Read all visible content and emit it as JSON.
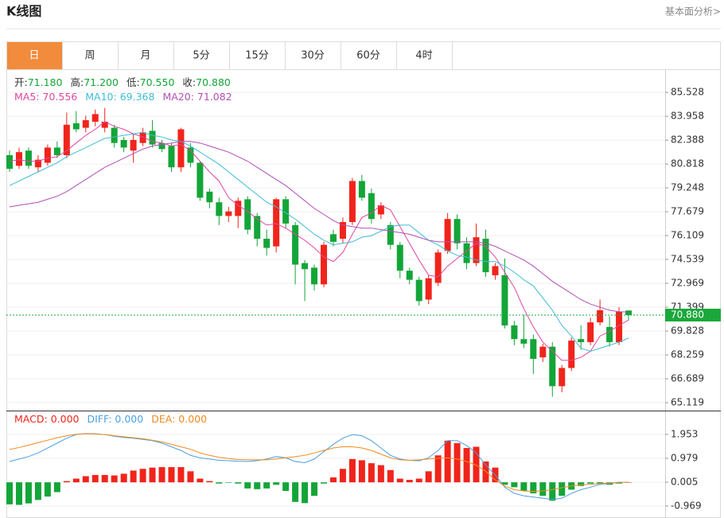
{
  "header": {
    "title": "K线图",
    "link": "基本面分析>"
  },
  "tabs": [
    "日",
    "周",
    "月",
    "5分",
    "15分",
    "30分",
    "60分",
    "4时"
  ],
  "active_tab": "日",
  "chart_data": [
    {
      "type": "candlestick",
      "info": [
        [
          {
            "label": "开:",
            "value": "71.180",
            "color": "#13a538"
          },
          {
            "label": "高:",
            "value": "71.200",
            "color": "#13a538"
          },
          {
            "label": "低:",
            "value": "70.550",
            "color": "#13a538"
          },
          {
            "label": "收:",
            "value": "70.880",
            "color": "#13a538"
          }
        ],
        [
          {
            "label": "MA5:",
            "value": "70.556",
            "color": "#e0479e"
          },
          {
            "label": "MA10:",
            "value": "69.368",
            "color": "#3fbcd6"
          },
          {
            "label": "MA20:",
            "value": "71.082",
            "color": "#b04fb8"
          }
        ]
      ],
      "up_color": "#f0241b",
      "down_color": "#13a538",
      "open": [
        81.4,
        80.7,
        81.7,
        80.6,
        80.9,
        81.9,
        81.4,
        83.5,
        83.2,
        83.6,
        83.2,
        83.2,
        82.4,
        81.7,
        82.2,
        83.0,
        82.2,
        82.0,
        80.6,
        81.9,
        80.9,
        79.0,
        78.3,
        77.4,
        77.4,
        78.5,
        77.4,
        75.9,
        75.4,
        78.5,
        76.8,
        74.3,
        74.0,
        72.9,
        76.2,
        75.9,
        77.0,
        79.7,
        78.9,
        77.5,
        76.8,
        75.5,
        73.8,
        73.2,
        71.9,
        73.0,
        75.1,
        77.2,
        75.6,
        74.3,
        75.9,
        73.5,
        73.5,
        70.2,
        69.3,
        69.3,
        68.1,
        68.8,
        66.2,
        67.4,
        69.3,
        69.1,
        70.4,
        70.1,
        69.1,
        71.18
      ],
      "high": [
        81.7,
        81.9,
        81.9,
        81.4,
        82.1,
        82.3,
        84.2,
        84.3,
        84.0,
        84.4,
        84.5,
        83.4,
        82.6,
        82.8,
        83.2,
        83.7,
        82.4,
        82.2,
        83.2,
        82.2,
        81.0,
        79.2,
        78.6,
        78.0,
        78.6,
        78.7,
        77.6,
        76.5,
        78.6,
        78.7,
        77.0,
        74.5,
        74.2,
        75.7,
        76.5,
        77.3,
        79.9,
        80.1,
        79.2,
        78.3,
        77.0,
        75.7,
        74.0,
        73.4,
        73.5,
        75.2,
        77.6,
        77.5,
        76.0,
        76.9,
        76.5,
        74.3,
        74.6,
        70.5,
        70.9,
        69.6,
        69.0,
        69.1,
        67.6,
        69.4,
        70.2,
        70.7,
        71.9,
        70.8,
        71.4,
        71.2
      ],
      "low": [
        80.3,
        80.5,
        80.5,
        80.3,
        80.7,
        81.2,
        81.2,
        82.9,
        82.9,
        83.3,
        82.9,
        81.9,
        81.6,
        80.9,
        82.0,
        81.9,
        81.6,
        80.3,
        80.3,
        80.6,
        78.4,
        77.9,
        76.8,
        77.0,
        76.6,
        76.2,
        75.4,
        74.8,
        75.0,
        76.6,
        72.9,
        71.8,
        72.5,
        72.7,
        75.4,
        75.6,
        76.8,
        78.4,
        76.9,
        77.2,
        75.2,
        73.3,
        72.9,
        71.5,
        71.6,
        72.8,
        74.9,
        75.2,
        73.9,
        74.1,
        73.4,
        73.2,
        70.0,
        68.9,
        68.7,
        67.0,
        67.8,
        65.5,
        65.8,
        67.2,
        68.6,
        68.9,
        70.2,
        68.8,
        68.9,
        70.55
      ],
      "close": [
        80.5,
        81.6,
        80.7,
        81.1,
        81.9,
        81.4,
        83.4,
        83.1,
        83.7,
        84.1,
        83.6,
        82.2,
        81.9,
        82.4,
        82.9,
        82.1,
        81.8,
        80.6,
        83.1,
        80.9,
        78.6,
        78.3,
        77.4,
        77.7,
        78.4,
        76.5,
        75.9,
        75.3,
        78.5,
        76.9,
        74.2,
        73.9,
        72.9,
        75.5,
        75.7,
        77.0,
        79.7,
        78.6,
        77.2,
        78.1,
        75.5,
        73.8,
        73.2,
        71.8,
        73.3,
        75.0,
        77.2,
        75.6,
        74.3,
        76.0,
        73.7,
        74.1,
        70.2,
        69.3,
        69.0,
        68.0,
        68.8,
        66.2,
        67.4,
        69.2,
        69.1,
        70.4,
        71.2,
        69.1,
        71.1,
        70.88
      ],
      "lines": [
        {
          "name": "MA5",
          "color": "#e0479e",
          "values": [
            81.0,
            81.1,
            81.0,
            81.0,
            81.2,
            81.3,
            81.7,
            82.2,
            82.7,
            83.1,
            83.6,
            83.3,
            83.1,
            82.8,
            82.6,
            82.3,
            82.2,
            82.0,
            82.1,
            81.7,
            81.0,
            80.3,
            79.7,
            78.6,
            78.1,
            77.7,
            77.2,
            76.8,
            76.9,
            76.6,
            76.2,
            75.8,
            75.3,
            74.7,
            74.4,
            75.0,
            76.2,
            77.3,
            77.6,
            78.1,
            77.8,
            76.7,
            75.6,
            74.5,
            73.5,
            73.4,
            74.1,
            74.6,
            75.1,
            75.6,
            75.4,
            74.7,
            73.7,
            72.7,
            71.3,
            70.1,
            69.1,
            68.5,
            67.9,
            67.9,
            68.1,
            68.5,
            69.5,
            69.8,
            70.2,
            70.556
          ]
        },
        {
          "name": "MA10",
          "color": "#3fbcd6",
          "values": [
            79.4,
            79.7,
            80.0,
            80.3,
            80.6,
            80.9,
            81.3,
            81.6,
            81.9,
            82.2,
            82.5,
            82.6,
            82.7,
            82.8,
            82.9,
            82.7,
            82.6,
            82.4,
            82.3,
            82.0,
            81.6,
            81.2,
            80.8,
            80.3,
            79.8,
            79.3,
            78.8,
            78.3,
            78.0,
            77.6,
            77.2,
            76.7,
            76.2,
            75.8,
            75.5,
            75.6,
            75.7,
            76.0,
            76.1,
            76.4,
            76.7,
            76.8,
            76.8,
            76.3,
            75.8,
            75.5,
            75.1,
            74.8,
            74.7,
            74.5,
            74.4,
            74.4,
            74.1,
            73.7,
            73.2,
            72.8,
            72.0,
            71.2,
            70.2,
            69.5,
            68.7,
            68.5,
            68.7,
            68.9,
            69.1,
            69.368
          ]
        },
        {
          "name": "MA20",
          "color": "#b04fb8",
          "values": [
            78.0,
            78.1,
            78.2,
            78.3,
            78.5,
            78.7,
            79.0,
            79.4,
            79.8,
            80.2,
            80.6,
            80.9,
            81.2,
            81.5,
            81.8,
            82.0,
            82.1,
            82.2,
            82.3,
            82.3,
            82.2,
            82.0,
            81.8,
            81.6,
            81.3,
            81.0,
            80.6,
            80.2,
            79.8,
            79.4,
            78.9,
            78.4,
            77.9,
            77.5,
            77.1,
            76.8,
            76.7,
            76.6,
            76.6,
            76.5,
            76.4,
            76.3,
            76.2,
            76.0,
            75.8,
            75.7,
            75.7,
            75.7,
            75.7,
            75.7,
            75.6,
            75.4,
            75.1,
            74.8,
            74.5,
            74.1,
            73.6,
            73.1,
            72.7,
            72.3,
            71.9,
            71.6,
            71.4,
            71.2,
            71.1,
            71.082
          ]
        }
      ],
      "current_price": {
        "value": 70.88,
        "label": "70.880",
        "color": "#1aa83c"
      },
      "ylim": [
        64.65,
        87.0
      ],
      "yticks": [
        85.528,
        83.958,
        82.388,
        80.818,
        79.248,
        77.679,
        76.109,
        74.539,
        72.969,
        71.399,
        69.828,
        68.259,
        66.689,
        65.119
      ],
      "grid": true
    },
    {
      "type": "macd",
      "info": [
        [
          {
            "label": "MACD:",
            "value": "0.000",
            "color": "#e8261c"
          },
          {
            "label": "DIFF:",
            "value": "0.000",
            "color": "#4a9fe3"
          },
          {
            "label": "DEA:",
            "value": "0.000",
            "color": "#f08a1e"
          }
        ]
      ],
      "up_color": "#f0241b",
      "down_color": "#13a538",
      "histogram": [
        -0.9,
        -0.92,
        -0.86,
        -0.72,
        -0.58,
        -0.4,
        0.05,
        0.15,
        0.25,
        0.3,
        0.3,
        0.28,
        0.35,
        0.48,
        0.55,
        0.6,
        0.62,
        0.62,
        0.62,
        0.45,
        0.15,
        0.05,
        -0.05,
        -0.02,
        -0.05,
        -0.25,
        -0.28,
        -0.25,
        -0.1,
        -0.35,
        -0.8,
        -0.85,
        -0.55,
        -0.05,
        0.2,
        0.55,
        0.95,
        0.9,
        0.78,
        0.7,
        0.5,
        0.15,
        0.1,
        0.15,
        0.45,
        1.1,
        1.7,
        1.6,
        1.4,
        1.45,
        0.85,
        0.6,
        -0.1,
        -0.2,
        -0.35,
        -0.45,
        -0.55,
        -0.75,
        -0.55,
        -0.3,
        -0.15,
        -0.05,
        -0.05,
        -0.1,
        -0.05,
        0.0
      ],
      "lines": [
        {
          "name": "DIFF",
          "color": "#4a9fe3",
          "values": [
            0.85,
            0.95,
            1.05,
            1.2,
            1.4,
            1.6,
            1.8,
            1.95,
            1.99,
            1.98,
            1.95,
            1.88,
            1.83,
            1.8,
            1.75,
            1.7,
            1.6,
            1.45,
            1.3,
            1.1,
            1.0,
            0.95,
            0.9,
            0.88,
            0.86,
            0.85,
            0.88,
            0.95,
            1.05,
            1.0,
            0.85,
            0.8,
            0.95,
            1.25,
            1.55,
            1.8,
            1.95,
            1.9,
            1.7,
            1.4,
            1.1,
            0.95,
            0.9,
            0.88,
            1.0,
            1.3,
            1.7,
            1.7,
            1.5,
            1.2,
            0.7,
            0.3,
            -0.2,
            -0.45,
            -0.55,
            -0.6,
            -0.65,
            -0.7,
            -0.65,
            -0.45,
            -0.3,
            -0.2,
            -0.08,
            -0.05,
            0.0,
            0.0
          ]
        },
        {
          "name": "DEA",
          "color": "#f08a1e",
          "values": [
            1.34,
            1.42,
            1.52,
            1.62,
            1.72,
            1.82,
            1.9,
            1.96,
            1.98,
            1.97,
            1.95,
            1.9,
            1.86,
            1.82,
            1.78,
            1.72,
            1.65,
            1.55,
            1.45,
            1.35,
            1.2,
            1.1,
            1.02,
            0.97,
            0.93,
            0.92,
            0.92,
            0.92,
            0.95,
            1.0,
            1.05,
            1.1,
            1.2,
            1.3,
            1.4,
            1.45,
            1.45,
            1.4,
            1.3,
            1.15,
            1.0,
            0.92,
            0.9,
            0.92,
            0.95,
            0.98,
            1.0,
            0.95,
            0.85,
            0.7,
            0.45,
            0.1,
            -0.15,
            -0.3,
            -0.35,
            -0.37,
            -0.35,
            -0.3,
            -0.22,
            -0.15,
            -0.1,
            -0.08,
            -0.05,
            -0.03,
            0.0,
            0.0
          ]
        }
      ],
      "ylim": [
        -1.456,
        2.895
      ],
      "yticks": [
        1.953,
        0.979,
        0.005,
        -0.969
      ],
      "grid": true
    }
  ]
}
